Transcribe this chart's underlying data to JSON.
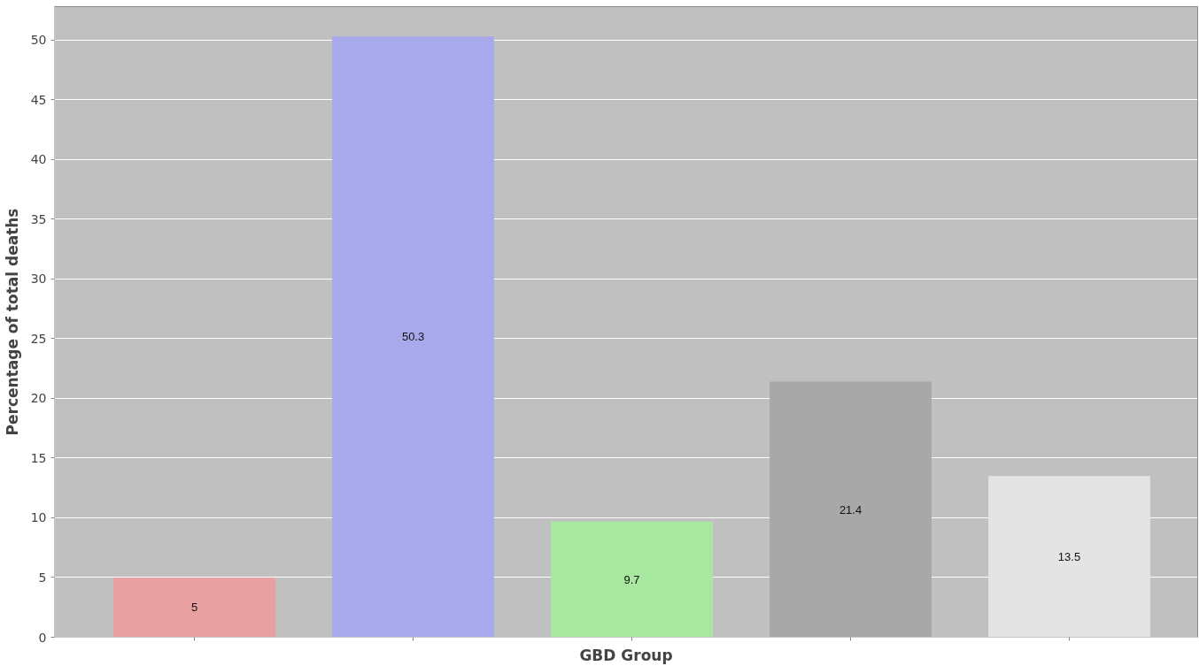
{
  "chart_data": {
    "type": "bar",
    "xlabel": "GBD Group",
    "ylabel": "Percentage of total deaths",
    "categories": [
      null,
      null,
      null,
      null,
      null
    ],
    "values": [
      5,
      50.3,
      9.7,
      21.4,
      13.5
    ],
    "colors": [
      "#e8a0a0",
      "#a8a8ec",
      "#a8e8a0",
      "#a8a8a8",
      "#e4e4e4"
    ],
    "ylim": [
      0,
      52.8
    ],
    "yticks": [
      0,
      5,
      10,
      15,
      20,
      25,
      30,
      35,
      40,
      45,
      50
    ],
    "data_labels": true,
    "grid": "y",
    "tick_labels": "y"
  }
}
